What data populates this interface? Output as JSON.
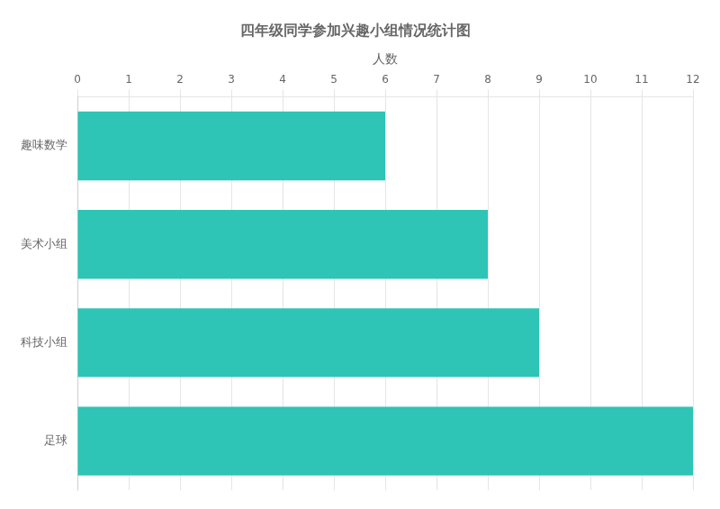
{
  "chart_data": {
    "type": "bar",
    "orientation": "horizontal",
    "title": "四年级同学参加兴趣小组情况统计图",
    "x_label": "人数",
    "categories": [
      "趣味数学",
      "美术小组",
      "科技小组",
      "足球"
    ],
    "values": [
      6,
      8,
      9,
      12
    ],
    "color": "#2ec4b6",
    "xlim": [
      0,
      12
    ],
    "xticks": [
      0,
      1,
      2,
      3,
      4,
      5,
      6,
      7,
      8,
      9,
      10,
      11,
      12
    ],
    "grid": true
  }
}
